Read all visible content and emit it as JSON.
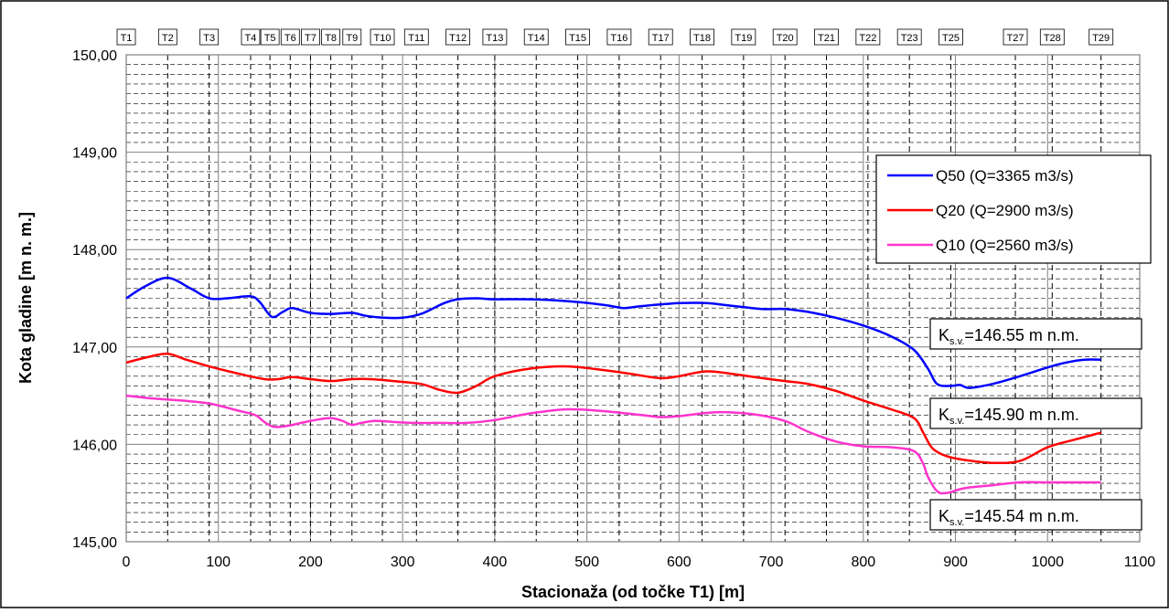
{
  "chart_data": {
    "type": "line",
    "title": "",
    "xlabel": "Stacionaža (od točke T1) [m]",
    "ylabel": "Kota gladine [m n. m.]",
    "xlim": [
      0,
      1100
    ],
    "ylim": [
      145,
      150
    ],
    "x_ticks": [
      0,
      100,
      200,
      300,
      400,
      500,
      600,
      700,
      800,
      900,
      1000,
      1100
    ],
    "x_tick_labels": [
      "0",
      "100",
      "200",
      "300",
      "400",
      "500",
      "600",
      "700",
      "800",
      "900",
      "1000",
      "1100"
    ],
    "y_ticks": [
      145,
      146,
      147,
      148,
      149,
      150
    ],
    "y_tick_labels": [
      "145,00",
      "146,00",
      "147,00",
      "148,00",
      "149,00",
      "150,00"
    ],
    "grid": true,
    "legend_position": "right",
    "sections": [
      {
        "label": "T1",
        "x": 0
      },
      {
        "label": "T2",
        "x": 45
      },
      {
        "label": "T3",
        "x": 90
      },
      {
        "label": "T4",
        "x": 135
      },
      {
        "label": "T5",
        "x": 156
      },
      {
        "label": "T6",
        "x": 178
      },
      {
        "label": "T7",
        "x": 200
      },
      {
        "label": "T8",
        "x": 222
      },
      {
        "label": "T9",
        "x": 245
      },
      {
        "label": "T10",
        "x": 278
      },
      {
        "label": "T11",
        "x": 315
      },
      {
        "label": "T12",
        "x": 360
      },
      {
        "label": "T13",
        "x": 400
      },
      {
        "label": "T14",
        "x": 445
      },
      {
        "label": "T15",
        "x": 490
      },
      {
        "label": "T16",
        "x": 535
      },
      {
        "label": "T17",
        "x": 580
      },
      {
        "label": "T18",
        "x": 625
      },
      {
        "label": "T19",
        "x": 670
      },
      {
        "label": "T20",
        "x": 715
      },
      {
        "label": "T21",
        "x": 760
      },
      {
        "label": "T22",
        "x": 805
      },
      {
        "label": "T23",
        "x": 850
      },
      {
        "label": "T25",
        "x": 895
      },
      {
        "label": "T27",
        "x": 965
      },
      {
        "label": "T28",
        "x": 1005
      },
      {
        "label": "T29",
        "x": 1058
      }
    ],
    "series": [
      {
        "name": "Q50 (Q=3365 m3/s)",
        "color": "#0000ff",
        "x": [
          0,
          20,
          45,
          70,
          90,
          110,
          135,
          145,
          158,
          170,
          180,
          200,
          222,
          245,
          260,
          280,
          300,
          320,
          345,
          360,
          380,
          400,
          440,
          480,
          520,
          540,
          560,
          600,
          630,
          660,
          690,
          715,
          740,
          770,
          800,
          830,
          855,
          870,
          880,
          895,
          905,
          915,
          940,
          970,
          1000,
          1020,
          1040,
          1058
        ],
        "values": [
          147.5,
          147.62,
          147.71,
          147.6,
          147.5,
          147.5,
          147.52,
          147.46,
          147.31,
          147.36,
          147.4,
          147.35,
          147.34,
          147.35,
          147.32,
          147.3,
          147.3,
          147.34,
          147.45,
          147.49,
          147.5,
          147.49,
          147.49,
          147.47,
          147.43,
          147.4,
          147.42,
          147.45,
          147.45,
          147.42,
          147.39,
          147.39,
          147.36,
          147.3,
          147.22,
          147.11,
          146.97,
          146.78,
          146.62,
          146.6,
          146.61,
          146.58,
          146.62,
          146.7,
          146.79,
          146.84,
          146.87,
          146.87
        ]
      },
      {
        "name": "Q20 (Q=2900 m3/s)",
        "color": "#ff0000",
        "x": [
          0,
          25,
          45,
          65,
          90,
          120,
          150,
          165,
          180,
          200,
          222,
          245,
          265,
          290,
          320,
          340,
          360,
          380,
          400,
          440,
          480,
          520,
          550,
          580,
          600,
          630,
          660,
          690,
          715,
          740,
          770,
          800,
          830,
          855,
          865,
          875,
          890,
          910,
          940,
          970,
          1000,
          1030,
          1058
        ],
        "values": [
          146.84,
          146.9,
          146.93,
          146.87,
          146.8,
          146.73,
          146.67,
          146.67,
          146.69,
          146.67,
          146.65,
          146.67,
          146.67,
          146.65,
          146.62,
          146.56,
          146.53,
          146.6,
          146.7,
          146.78,
          146.8,
          146.76,
          146.72,
          146.68,
          146.7,
          146.75,
          146.72,
          146.68,
          146.65,
          146.62,
          146.55,
          146.45,
          146.36,
          146.27,
          146.12,
          145.96,
          145.88,
          145.84,
          145.81,
          145.83,
          145.97,
          146.05,
          146.12
        ]
      },
      {
        "name": "Q10 (Q=2560 m3/s)",
        "color": "#ff33cc",
        "x": [
          0,
          30,
          60,
          90,
          120,
          140,
          150,
          160,
          175,
          190,
          205,
          222,
          235,
          245,
          255,
          270,
          290,
          310,
          340,
          370,
          400,
          440,
          480,
          520,
          560,
          580,
          600,
          640,
          680,
          715,
          740,
          770,
          800,
          830,
          855,
          865,
          870,
          880,
          890,
          910,
          940,
          970,
          1000,
          1030,
          1058
        ],
        "values": [
          146.5,
          146.47,
          146.45,
          146.42,
          146.35,
          146.3,
          146.23,
          146.18,
          146.19,
          146.22,
          146.25,
          146.27,
          146.24,
          146.2,
          146.22,
          146.24,
          146.23,
          146.22,
          146.22,
          146.22,
          146.25,
          146.32,
          146.36,
          146.34,
          146.3,
          146.28,
          146.29,
          146.33,
          146.31,
          146.24,
          146.13,
          146.03,
          145.98,
          145.97,
          145.93,
          145.8,
          145.67,
          145.52,
          145.5,
          145.55,
          145.58,
          145.61,
          145.61,
          145.61,
          145.61
        ]
      }
    ],
    "annotations": [
      {
        "prefix": "K",
        "sub": "s.v.",
        "text": "=146.55 m n.m."
      },
      {
        "prefix": "K",
        "sub": "s.v.",
        "text": "=145.90 m n.m."
      },
      {
        "prefix": "K",
        "sub": "s.v.",
        "text": "=145.54 m n.m."
      }
    ]
  }
}
